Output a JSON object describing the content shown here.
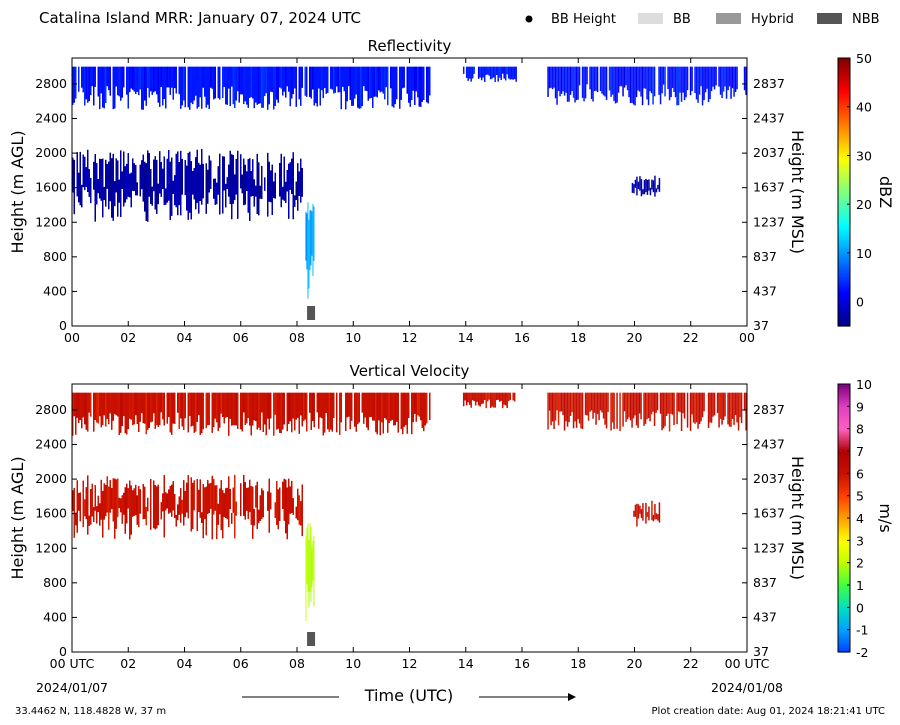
{
  "header": {
    "title": "Catalina Island MRR:  January 07, 2024 UTC",
    "legend": [
      {
        "label": "BB Height",
        "kind": "dot",
        "color": "#000000"
      },
      {
        "label": "BB",
        "kind": "swatch",
        "color": "#dddddd"
      },
      {
        "label": "Hybrid",
        "kind": "swatch",
        "color": "#999999"
      },
      {
        "label": "NBB",
        "kind": "swatch",
        "color": "#555555"
      }
    ]
  },
  "footer": {
    "location": "33.4462 N, 118.4828 W, 37 m",
    "creation": "Plot creation date: Aug 01, 2024 18:21:41 UTC",
    "start_date": "2024/01/07",
    "end_date": "2024/01/08",
    "xaxis_label": "Time (UTC)"
  },
  "chart_data": [
    {
      "type": "heatmap",
      "title": "Reflectivity",
      "xlabel": "Time (UTC)",
      "ylabel": "Height (m AGL)",
      "ylabel_right": "Height (m MSL)",
      "x_ticks": [
        "00",
        "02",
        "04",
        "06",
        "08",
        "10",
        "12",
        "14",
        "16",
        "18",
        "20",
        "22",
        "00"
      ],
      "xlim": [
        0,
        24
      ],
      "y_ticks": [
        0,
        400,
        800,
        1200,
        1600,
        2000,
        2400,
        2800
      ],
      "y_ticks_right": [
        "37",
        "437",
        "837",
        "1237",
        "1637",
        "2037",
        "2437",
        "2837"
      ],
      "ylim": [
        0,
        3100
      ],
      "colorbar": {
        "label": "dBZ",
        "min": -5,
        "max": 50,
        "ticks": [
          0,
          10,
          20,
          30,
          40,
          50
        ],
        "colors": [
          "#00007f",
          "#0000ff",
          "#007fff",
          "#00ffff",
          "#7fff7f",
          "#ffff00",
          "#ff7f00",
          "#ff0000",
          "#7f0000"
        ]
      },
      "regions": [
        {
          "name": "upper layer",
          "x_start": 0.0,
          "x_end": 12.7,
          "y_bottom": 2500,
          "y_top": 3000,
          "value": 3
        },
        {
          "name": "upper layer",
          "x_start": 13.9,
          "x_end": 15.8,
          "y_bottom": 2820,
          "y_top": 3000,
          "value": 3
        },
        {
          "name": "upper layer",
          "x_start": 16.9,
          "x_end": 24.0,
          "y_bottom": 2550,
          "y_top": 3000,
          "value": 3
        },
        {
          "name": "mid layer",
          "x_start": 0.0,
          "x_end": 8.2,
          "y_bottom": 1200,
          "y_top": 2050,
          "value": -3
        },
        {
          "name": "mid layer",
          "x_start": 19.9,
          "x_end": 20.9,
          "y_bottom": 1450,
          "y_top": 1750,
          "value": -3
        },
        {
          "name": "rain shaft",
          "x_start": 8.3,
          "x_end": 8.6,
          "y_bottom": 300,
          "y_top": 1500,
          "value": 11
        }
      ],
      "bright_band_markers": [
        {
          "x": 8.5,
          "type": "NBB"
        }
      ]
    },
    {
      "type": "heatmap",
      "title": "Vertical Velocity",
      "xlabel": "Time (UTC)",
      "ylabel": "Height (m AGL)",
      "ylabel_right": "Height (m MSL)",
      "x_ticks": [
        "00 UTC",
        "02",
        "04",
        "06",
        "08",
        "10",
        "12",
        "14",
        "16",
        "18",
        "20",
        "22",
        "00 UTC"
      ],
      "xlim": [
        0,
        24
      ],
      "y_ticks": [
        0,
        400,
        800,
        1200,
        1600,
        2000,
        2400,
        2800
      ],
      "y_ticks_right": [
        "37",
        "437",
        "837",
        "1237",
        "1637",
        "2037",
        "2437",
        "2837"
      ],
      "ylim": [
        0,
        3100
      ],
      "colorbar": {
        "label": "m/s",
        "min": -2,
        "max": 10,
        "ticks": [
          -2,
          -1,
          0,
          1,
          2,
          3,
          4,
          5,
          6,
          7,
          8,
          9,
          10
        ],
        "colors": [
          "#0040ff",
          "#00a0ff",
          "#00e0c0",
          "#40ff40",
          "#c0ff00",
          "#ffff00",
          "#ffa000",
          "#ff4000",
          "#c81000",
          "#b00000",
          "#ff60c0",
          "#e040c0",
          "#800080"
        ]
      },
      "regions": [
        {
          "name": "upper layer",
          "x_start": 0.0,
          "x_end": 12.7,
          "y_bottom": 2500,
          "y_top": 3000,
          "value": 6
        },
        {
          "name": "upper layer",
          "x_start": 13.9,
          "x_end": 15.8,
          "y_bottom": 2820,
          "y_top": 3000,
          "value": 6
        },
        {
          "name": "upper layer",
          "x_start": 16.9,
          "x_end": 24.0,
          "y_bottom": 2550,
          "y_top": 3000,
          "value": 6
        },
        {
          "name": "mid layer",
          "x_start": 0.0,
          "x_end": 8.2,
          "y_bottom": 1300,
          "y_top": 2050,
          "value": 6
        },
        {
          "name": "mid layer",
          "x_start": 19.9,
          "x_end": 20.9,
          "y_bottom": 1450,
          "y_top": 1750,
          "value": 6
        },
        {
          "name": "rain shaft",
          "x_start": 8.3,
          "x_end": 8.6,
          "y_bottom": 300,
          "y_top": 1500,
          "value": 2
        }
      ],
      "bright_band_markers": [
        {
          "x": 8.5,
          "type": "NBB"
        }
      ]
    }
  ]
}
